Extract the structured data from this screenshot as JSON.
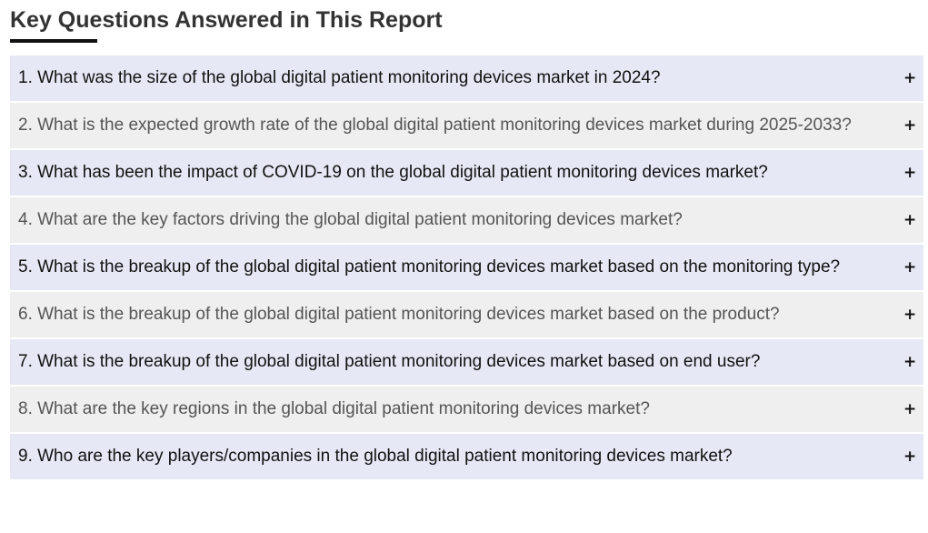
{
  "section": {
    "title": "Key Questions Answered in This Report"
  },
  "faq": {
    "toggle_icon": "plus-icon",
    "toggle_symbol": "+",
    "items": [
      {
        "question": "1. What was the size of the global digital patient monitoring devices market in 2024?"
      },
      {
        "question": "2. What is the expected growth rate of the global digital patient monitoring devices market during 2025-2033?"
      },
      {
        "question": "3. What has been the impact of COVID-19 on the global digital patient monitoring devices market?"
      },
      {
        "question": "4. What are the key factors driving the global digital patient monitoring devices market?"
      },
      {
        "question": "5. What is the breakup of the global digital patient monitoring devices market based on the monitoring type?"
      },
      {
        "question": "6. What is the breakup of the global digital patient monitoring devices market based on the product?"
      },
      {
        "question": "7. What is the breakup of the global digital patient monitoring devices market based on end user?"
      },
      {
        "question": "8. What are the key regions in the global digital patient monitoring devices market?"
      },
      {
        "question": "9. Who are the key players/companies in the global digital patient monitoring devices market?"
      }
    ]
  },
  "colors": {
    "row_odd_bg": "#e6e9f5",
    "row_even_bg": "#efefef",
    "text_dark": "#111111",
    "text_muted": "#555555",
    "title": "#333333"
  }
}
